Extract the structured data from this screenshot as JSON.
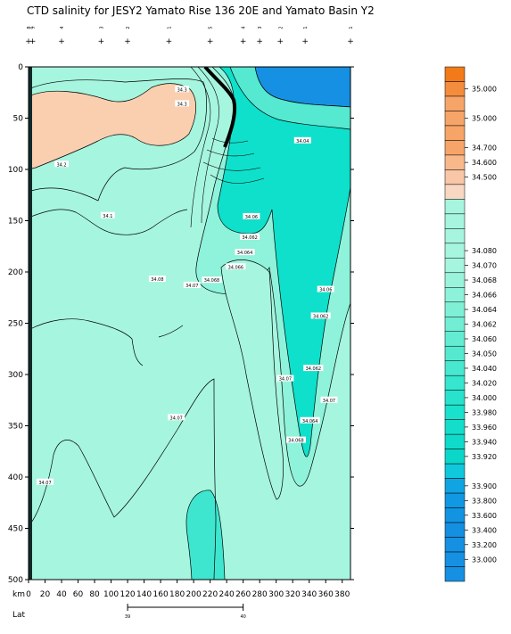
{
  "chart_data": {
    "type": "contour",
    "title": "CTD salinity for JESY2 Yamato Rise 136 20E and Yamato Basin Y2",
    "xlabel": "km",
    "ylabel": "",
    "lat_label": "Lat",
    "xlim": [
      0,
      390
    ],
    "ylim": [
      500,
      0
    ],
    "x_ticks": [
      0,
      20,
      40,
      60,
      80,
      100,
      120,
      140,
      160,
      180,
      200,
      220,
      240,
      260,
      280,
      300,
      320,
      340,
      360,
      380
    ],
    "y_ticks": [
      0,
      50,
      100,
      150,
      200,
      250,
      300,
      350,
      400,
      450,
      500
    ],
    "lat_ticks": [
      {
        "km": 120,
        "label": "39"
      },
      {
        "km": 260,
        "label": "40"
      }
    ],
    "station_km": [
      0,
      5,
      40,
      88,
      120,
      170,
      220,
      260,
      280,
      305,
      335,
      390
    ],
    "station_labels": [
      "8",
      "9",
      "4",
      "3",
      "2",
      "1",
      "5",
      "4",
      "3",
      "2",
      "1",
      "1"
    ],
    "contour_labels": [
      {
        "text": "34.3",
        "km": 186,
        "depth": 22
      },
      {
        "text": "34.3",
        "km": 186,
        "depth": 36
      },
      {
        "text": "34.04",
        "km": 332,
        "depth": 72
      },
      {
        "text": "34.2",
        "km": 40,
        "depth": 95
      },
      {
        "text": "34.1",
        "km": 96,
        "depth": 145
      },
      {
        "text": "34.06",
        "km": 270,
        "depth": 146
      },
      {
        "text": "34.062",
        "km": 268,
        "depth": 166
      },
      {
        "text": "34.064",
        "km": 262,
        "depth": 181
      },
      {
        "text": "34.066",
        "km": 251,
        "depth": 195
      },
      {
        "text": "34.068",
        "km": 222,
        "depth": 208
      },
      {
        "text": "34.08",
        "km": 156,
        "depth": 207
      },
      {
        "text": "34.07",
        "km": 198,
        "depth": 213
      },
      {
        "text": "34.06",
        "km": 360,
        "depth": 217
      },
      {
        "text": "34.062",
        "km": 354,
        "depth": 243
      },
      {
        "text": "34.062",
        "km": 345,
        "depth": 294
      },
      {
        "text": "34.07",
        "km": 311,
        "depth": 304
      },
      {
        "text": "34.07",
        "km": 364,
        "depth": 325
      },
      {
        "text": "34.07",
        "km": 179,
        "depth": 342
      },
      {
        "text": "34.064",
        "km": 341,
        "depth": 345
      },
      {
        "text": "34.068",
        "km": 324,
        "depth": 364
      },
      {
        "text": "34.07",
        "km": 20,
        "depth": 405
      }
    ],
    "colorbar": [
      {
        "label": "",
        "color": "#f27a18"
      },
      {
        "label": "35.000",
        "color": "#f48c3e"
      },
      {
        "label": "",
        "color": "#f7a468"
      },
      {
        "label": "35.000",
        "color": "#f7a468"
      },
      {
        "label": "",
        "color": "#f7a468"
      },
      {
        "label": "34.700",
        "color": "#f7a468"
      },
      {
        "label": "34.600",
        "color": "#f9b88a"
      },
      {
        "label": "34.500",
        "color": "#f9c7a8"
      },
      {
        "label": "",
        "color": "#f8d8c2"
      },
      {
        "label": "",
        "color": "#a6f5df"
      },
      {
        "label": "",
        "color": "#a6f5df"
      },
      {
        "label": "",
        "color": "#a6f5df"
      },
      {
        "label": "34.080",
        "color": "#a6f5df"
      },
      {
        "label": "34.070",
        "color": "#a6f5df"
      },
      {
        "label": "34.068",
        "color": "#9af4dc"
      },
      {
        "label": "34.066",
        "color": "#8cf2d9"
      },
      {
        "label": "34.064",
        "color": "#7ff0d6"
      },
      {
        "label": "34.062",
        "color": "#72eed4"
      },
      {
        "label": "34.060",
        "color": "#63ecd2"
      },
      {
        "label": "34.050",
        "color": "#55ead0"
      },
      {
        "label": "34.040",
        "color": "#47e8cf"
      },
      {
        "label": "34.020",
        "color": "#36e6ce"
      },
      {
        "label": "34.000",
        "color": "#27e3cd"
      },
      {
        "label": "33.980",
        "color": "#1ae1cc"
      },
      {
        "label": "33.960",
        "color": "#14decb"
      },
      {
        "label": "33.940",
        "color": "#10dbca"
      },
      {
        "label": "33.920",
        "color": "#0bd7c9"
      },
      {
        "label": "",
        "color": "#0fc8dc"
      },
      {
        "label": "33.900",
        "color": "#10a4e3"
      },
      {
        "label": "33.800",
        "color": "#1198e3"
      },
      {
        "label": "33.600",
        "color": "#1294e2"
      },
      {
        "label": "33.400",
        "color": "#1490e2"
      },
      {
        "label": "33.200",
        "color": "#1690e2"
      },
      {
        "label": "33.000",
        "color": "#1690e2"
      },
      {
        "label": "",
        "color": "#1690e2"
      }
    ]
  }
}
